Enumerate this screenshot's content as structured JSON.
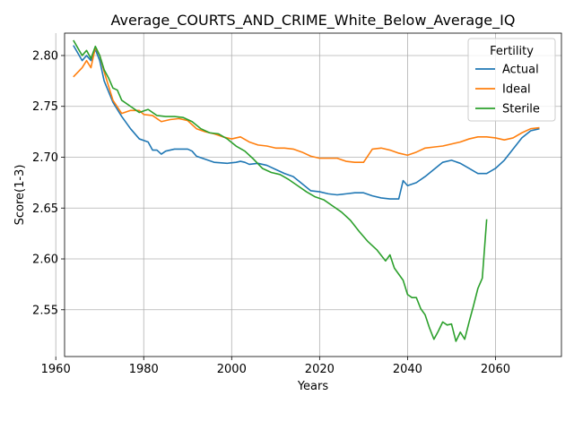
{
  "chart_data": {
    "type": "line",
    "title": "Average_COURTS_AND_CRIME_White_Below_Average_IQ",
    "xlabel": "Years",
    "ylabel": "Score(1-3)",
    "xlim": [
      1962,
      2075
    ],
    "ylim": [
      2.504,
      2.822
    ],
    "xticks": [
      1960,
      1980,
      2000,
      2020,
      2040,
      2060
    ],
    "yticks": [
      2.55,
      2.6,
      2.65,
      2.7,
      2.75,
      2.8
    ],
    "ytick_labels": [
      "2.55",
      "2.60",
      "2.65",
      "2.70",
      "2.75",
      "2.80"
    ],
    "grid": true,
    "legend": {
      "title": "Fertility",
      "placement": "top-right"
    },
    "series": [
      {
        "name": "Actual",
        "color": "#1f77b4",
        "x": [
          1964,
          1966,
          1967,
          1968,
          1969,
          1970,
          1971,
          1973,
          1975,
          1977,
          1979,
          1981,
          1982,
          1983,
          1984,
          1985,
          1987,
          1990,
          1991,
          1992,
          1994,
          1996,
          1999,
          2001,
          2002,
          2003,
          2004,
          2006,
          2008,
          2010,
          2012,
          2014,
          2016,
          2018,
          2020,
          2022,
          2024,
          2026,
          2028,
          2030,
          2032,
          2034,
          2036,
          2038,
          2039,
          2040,
          2042,
          2044,
          2046,
          2048,
          2050,
          2052,
          2054,
          2056,
          2058,
          2060,
          2062,
          2064,
          2066,
          2068,
          2070
        ],
        "values": [
          2.81,
          2.795,
          2.8,
          2.795,
          2.806,
          2.795,
          2.775,
          2.754,
          2.74,
          2.728,
          2.718,
          2.715,
          2.707,
          2.707,
          2.703,
          2.706,
          2.708,
          2.708,
          2.706,
          2.701,
          2.698,
          2.695,
          2.694,
          2.695,
          2.696,
          2.695,
          2.693,
          2.694,
          2.692,
          2.688,
          2.684,
          2.681,
          2.674,
          2.667,
          2.666,
          2.664,
          2.663,
          2.664,
          2.665,
          2.665,
          2.662,
          2.66,
          2.659,
          2.659,
          2.677,
          2.672,
          2.675,
          2.681,
          2.688,
          2.695,
          2.697,
          2.694,
          2.689,
          2.684,
          2.684,
          2.689,
          2.697,
          2.708,
          2.719,
          2.726,
          2.728
        ]
      },
      {
        "name": "Ideal",
        "color": "#ff7f0e",
        "x": [
          1964,
          1966,
          1967,
          1968,
          1969,
          1970,
          1971,
          1973,
          1975,
          1977,
          1979,
          1980,
          1982,
          1984,
          1986,
          1988,
          1990,
          1992,
          1994,
          1996,
          1998,
          2000,
          2002,
          2004,
          2006,
          2008,
          2010,
          2012,
          2014,
          2016,
          2018,
          2020,
          2022,
          2024,
          2026,
          2028,
          2030,
          2032,
          2034,
          2036,
          2038,
          2040,
          2042,
          2044,
          2046,
          2048,
          2050,
          2052,
          2054,
          2056,
          2058,
          2060,
          2062,
          2064,
          2066,
          2068,
          2070
        ],
        "values": [
          2.779,
          2.788,
          2.795,
          2.788,
          2.808,
          2.8,
          2.784,
          2.756,
          2.743,
          2.746,
          2.746,
          2.742,
          2.741,
          2.735,
          2.737,
          2.738,
          2.736,
          2.728,
          2.725,
          2.723,
          2.72,
          2.718,
          2.72,
          2.715,
          2.712,
          2.711,
          2.709,
          2.709,
          2.708,
          2.705,
          2.701,
          2.699,
          2.699,
          2.699,
          2.696,
          2.695,
          2.695,
          2.708,
          2.709,
          2.707,
          2.704,
          2.702,
          2.705,
          2.709,
          2.71,
          2.711,
          2.713,
          2.715,
          2.718,
          2.72,
          2.72,
          2.719,
          2.717,
          2.719,
          2.724,
          2.728,
          2.729
        ]
      },
      {
        "name": "Sterile",
        "color": "#2ca02c",
        "x": [
          1964,
          1966,
          1967,
          1968,
          1969,
          1970,
          1971,
          1972,
          1973,
          1974,
          1975,
          1977,
          1979,
          1981,
          1983,
          1985,
          1987,
          1989,
          1991,
          1993,
          1995,
          1997,
          1999,
          2001,
          2003,
          2005,
          2007,
          2009,
          2011,
          2013,
          2015,
          2017,
          2019,
          2021,
          2023,
          2025,
          2027,
          2029,
          2031,
          2033,
          2035,
          2036,
          2037,
          2039,
          2040,
          2041,
          2042,
          2043,
          2044,
          2045,
          2046,
          2047,
          2048,
          2049,
          2050,
          2051,
          2052,
          2053,
          2054,
          2055,
          2056,
          2057,
          2058
        ],
        "values": [
          2.815,
          2.8,
          2.805,
          2.797,
          2.809,
          2.8,
          2.786,
          2.778,
          2.768,
          2.766,
          2.756,
          2.75,
          2.744,
          2.747,
          2.741,
          2.74,
          2.74,
          2.739,
          2.735,
          2.728,
          2.724,
          2.723,
          2.718,
          2.711,
          2.706,
          2.698,
          2.689,
          2.685,
          2.683,
          2.678,
          2.672,
          2.666,
          2.661,
          2.658,
          2.652,
          2.646,
          2.638,
          2.627,
          2.617,
          2.609,
          2.598,
          2.604,
          2.591,
          2.579,
          2.565,
          2.562,
          2.562,
          2.551,
          2.545,
          2.532,
          2.521,
          2.529,
          2.538,
          2.535,
          2.536,
          2.519,
          2.528,
          2.521,
          2.538,
          2.554,
          2.571,
          2.581,
          2.639
        ]
      }
    ]
  }
}
